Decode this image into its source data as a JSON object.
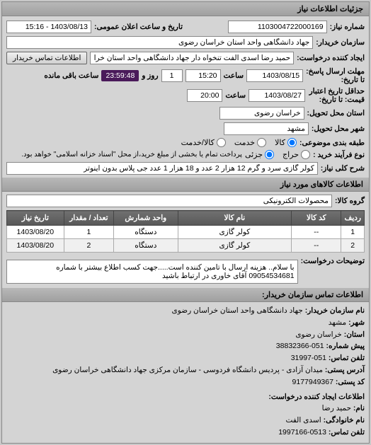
{
  "header": {
    "title": "جزئیات اطلاعات نیاز"
  },
  "fields": {
    "need_number_label": "شماره نیاز:",
    "need_number": "1103004722000169",
    "announce_date_label": "تاریخ و ساعت اعلان عمومی:",
    "announce_date": "1403/08/13 - 15:16",
    "buyer_org_label": "سازمان خریدار:",
    "buyer_org": "جهاد دانشگاهی واحد استان خراسان رضوی",
    "creator_label": "ایجاد کننده درخواست:",
    "creator": "حمید رضا اسدی الفت تنخواه دار جهاد دانشگاهی واحد استان خراسان رضوی",
    "contact_btn": "اطلاعات تماس خریدار",
    "response_deadline_label": "مهلت ارسال پاسخ:",
    "response_from_label": "تا تاریخ:",
    "response_date": "1403/08/15",
    "response_time_label": "ساعت",
    "response_time": "15:20",
    "days_label": "روز و",
    "days": "1",
    "countdown": "23:59:48",
    "remaining_label": "ساعت باقی مانده",
    "validity_label": "حداقل تاریخ اعتبار",
    "validity_to_label": "قیمت: تا تاریخ:",
    "validity_date": "1403/08/27",
    "validity_time_label": "ساعت",
    "validity_time": "20:00",
    "province_label": "استان محل تحویل:",
    "province": "خراسان رضوی",
    "city_label": "شهر محل تحویل:",
    "city": "مشهد",
    "category_label": "طبقه بندی موضوعی:",
    "cat_all": "کالا",
    "cat_service": "خدمت",
    "cat_goods_service": "کالا/خدمت",
    "purchase_type_label": "نوع فرآیند خرید :",
    "pt_auction": "حراج",
    "pt_partial": "جزئی",
    "purchase_note": "پرداخت تمام یا بخشی از مبلغ خرید،از محل \"اسناد خزانه اسلامی\" خواهد بود.",
    "need_title_label": "شرح کلی نیاز:",
    "need_title": "کولر گازی سرد و گرم 12 هزار 2 عدد و 18 هزار 1 عدد جی پلاس بدون اینوتر"
  },
  "goods_section": {
    "title": "اطلاعات کالاهای مورد نیاز",
    "group_label": "گروه کالا:",
    "group": "محصولات الکترونیکی"
  },
  "table": {
    "headers": [
      "ردیف",
      "کد کالا",
      "نام کالا",
      "واحد شمارش",
      "تعداد / مقدار",
      "تاریخ نیاز"
    ],
    "rows": [
      [
        "1",
        "--",
        "کولر گازی",
        "دستگاه",
        "1",
        "1403/08/20"
      ],
      [
        "2",
        "--",
        "کولر گازی",
        "دستگاه",
        "2",
        "1403/08/20"
      ]
    ],
    "col_widths": [
      "6%",
      "14%",
      "32%",
      "18%",
      "14%",
      "16%"
    ]
  },
  "description": {
    "label": "توضیحات درخواست:",
    "text": "با سلام.. هزینه ارسال با تامین کننده است.....جهت کسب اطلاع بیشتر با شماره 09054534681 آقای خاوری در ارتباط باشید"
  },
  "contact": {
    "title": "اطلاعات تماس سازمان خریدار:",
    "org_label": "نام سازمان خریدار:",
    "org": "جهاد دانشگاهی واحد استان خراسان رضوی",
    "city_label": "شهر:",
    "city": "مشهد",
    "province_label": "استان:",
    "province": "خراسان رضوی",
    "prefix_label": "پیش شماره:",
    "prefix": "051-38832366",
    "phone_label": "تلفن تماس:",
    "phone": "051-31997",
    "address_label": "آدرس پستی:",
    "address": "میدان آزادی - پردیس دانشگاه فردوسی - سازمان مرکزی جهاد دانشگاهی خراسان رضوی",
    "postal_label": "کد پستی:",
    "postal": "9177949367",
    "req_creator_title": "اطلاعات ایجاد کننده درخواست:",
    "name_label": "نام:",
    "name": "حمید رضا",
    "family_label": "نام خانوادگی:",
    "family": "اسدی الفت",
    "req_phone_label": "تلفن تماس:",
    "req_phone": "0513-1997166"
  }
}
